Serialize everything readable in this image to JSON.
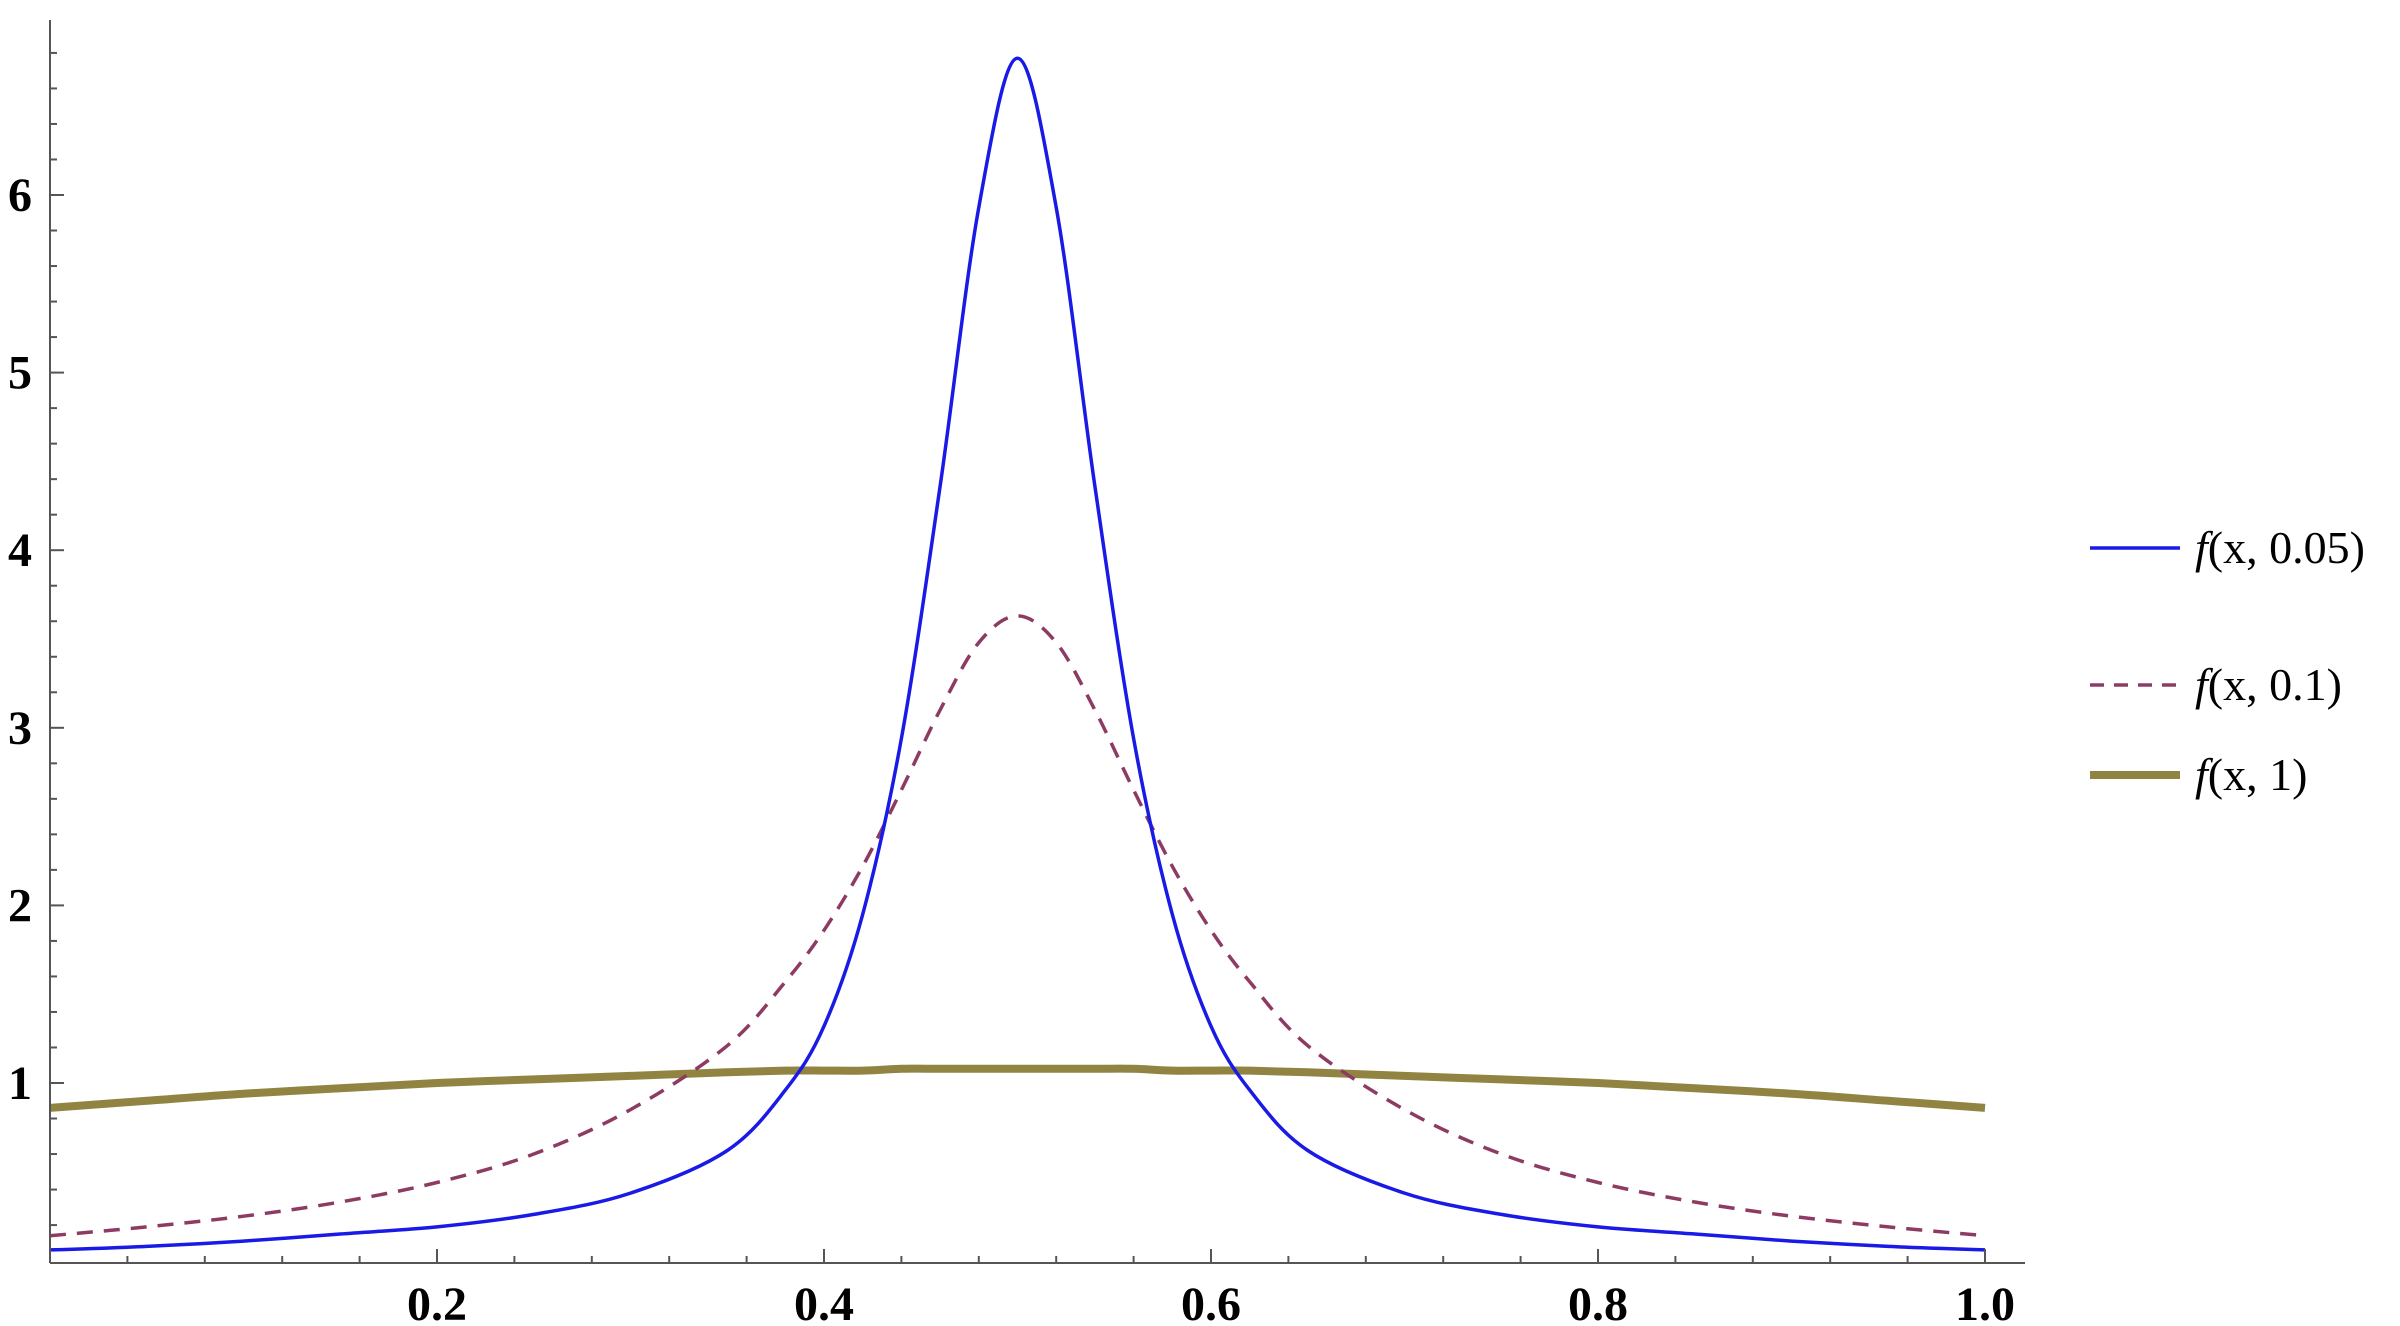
{
  "chart_data": {
    "type": "line",
    "title": "",
    "xlabel": "",
    "ylabel": "",
    "xlim": [
      0,
      1.0
    ],
    "ylim": [
      0,
      6.9
    ],
    "grid": false,
    "legend_placement": "right",
    "x_ticks": [
      {
        "value": 0.2,
        "label": "0.2"
      },
      {
        "value": 0.4,
        "label": "0.4"
      },
      {
        "value": 0.6,
        "label": "0.6"
      },
      {
        "value": 0.8,
        "label": "0.8"
      },
      {
        "value": 1.0,
        "label": "1.0"
      }
    ],
    "y_ticks": [
      {
        "value": 1,
        "label": "1"
      },
      {
        "value": 2,
        "label": "2"
      },
      {
        "value": 3,
        "label": "3"
      },
      {
        "value": 4,
        "label": "4"
      },
      {
        "value": 5,
        "label": "5"
      },
      {
        "value": 6,
        "label": "6"
      }
    ],
    "x": [
      0.0,
      0.05,
      0.1,
      0.15,
      0.2,
      0.25,
      0.3,
      0.35,
      0.38,
      0.4,
      0.42,
      0.44,
      0.46,
      0.48,
      0.5,
      0.52,
      0.54,
      0.56,
      0.58,
      0.6,
      0.62,
      0.65,
      0.7,
      0.75,
      0.8,
      0.85,
      0.9,
      0.95,
      1.0
    ],
    "series": [
      {
        "name": "f(x, 0.05)",
        "name_fn": "f",
        "name_args": "(x, 0.05)",
        "color": "#1a1ae6",
        "style": "solid",
        "values": [
          0.06,
          0.08,
          0.11,
          0.15,
          0.19,
          0.26,
          0.38,
          0.62,
          0.96,
          1.32,
          1.95,
          2.94,
          4.36,
          5.93,
          6.77,
          5.93,
          4.36,
          2.94,
          1.95,
          1.32,
          0.96,
          0.62,
          0.38,
          0.26,
          0.19,
          0.15,
          0.11,
          0.08,
          0.06
        ]
      },
      {
        "name": "f(x, 0.1)",
        "name_fn": "f",
        "name_args": "(x, 0.1)",
        "color": "#8e3b63",
        "style": "dashed",
        "values": [
          0.14,
          0.19,
          0.25,
          0.33,
          0.44,
          0.6,
          0.85,
          1.21,
          1.57,
          1.86,
          2.22,
          2.65,
          3.1,
          3.48,
          3.63,
          3.48,
          3.1,
          2.65,
          2.22,
          1.86,
          1.57,
          1.21,
          0.85,
          0.6,
          0.44,
          0.33,
          0.25,
          0.19,
          0.14
        ]
      },
      {
        "name": "f(x, 1)",
        "name_fn": "f",
        "name_args": "(x, 1)",
        "color": "#918443",
        "style": "thick",
        "values": [
          0.86,
          0.9,
          0.94,
          0.97,
          1.0,
          1.02,
          1.04,
          1.06,
          1.07,
          1.07,
          1.07,
          1.08,
          1.08,
          1.08,
          1.08,
          1.08,
          1.08,
          1.08,
          1.07,
          1.07,
          1.07,
          1.06,
          1.04,
          1.02,
          1.0,
          0.97,
          0.94,
          0.9,
          0.86
        ]
      }
    ]
  }
}
